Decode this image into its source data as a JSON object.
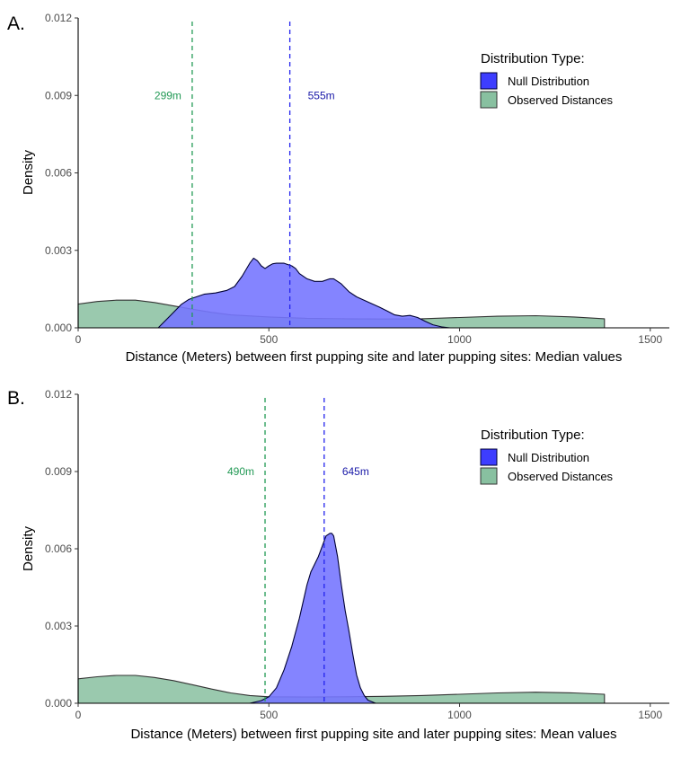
{
  "colors": {
    "null_fill": "#7777ff",
    "null_stroke": "#000033",
    "observed_fill": "#88c0a0",
    "observed_stroke": "#333333",
    "null_line": "#2222ee",
    "observed_line": "#229955",
    "null_text": "#1a1aa8",
    "observed_text": "#229955"
  },
  "chart_data": [
    {
      "type": "area",
      "panel_label": "A.",
      "xlabel": "Distance (Meters) between first pupping site and later pupping sites: Median values",
      "ylabel": "Density",
      "xlim": [
        0,
        1550
      ],
      "ylim": [
        0,
        0.012
      ],
      "x_ticks": [
        0,
        500,
        1000,
        1500
      ],
      "y_ticks": [
        "0.000",
        "0.003",
        "0.006",
        "0.009",
        "0.012"
      ],
      "grid": false,
      "legend": {
        "title": "Distribution Type:",
        "position": "top-right",
        "entries": [
          "Null Distribution",
          "Observed Distances"
        ]
      },
      "series": [
        {
          "name": "Null Distribution",
          "x": [
            210,
            240,
            270,
            290,
            310,
            330,
            360,
            390,
            410,
            430,
            450,
            460,
            470,
            480,
            490,
            500,
            510,
            520,
            530,
            540,
            550,
            560,
            570,
            580,
            600,
            620,
            640,
            660,
            670,
            690,
            710,
            730,
            760,
            790,
            810,
            830,
            850,
            870,
            890,
            910,
            930,
            955,
            975
          ],
          "values": [
            0,
            0.00045,
            0.0009,
            0.0011,
            0.0012,
            0.0013,
            0.00135,
            0.00145,
            0.0016,
            0.002,
            0.0025,
            0.0027,
            0.0026,
            0.0024,
            0.0023,
            0.0024,
            0.00248,
            0.0025,
            0.0025,
            0.0025,
            0.00245,
            0.0024,
            0.0023,
            0.0021,
            0.0019,
            0.0018,
            0.0018,
            0.0019,
            0.0019,
            0.0017,
            0.0014,
            0.0012,
            0.001,
            0.0008,
            0.00065,
            0.0005,
            0.00045,
            0.00048,
            0.0004,
            0.00025,
            0.00012,
            3e-05,
            0
          ]
        },
        {
          "name": "Observed Distances",
          "x": [
            0,
            50,
            100,
            150,
            200,
            250,
            300,
            350,
            400,
            500,
            600,
            700,
            800,
            900,
            1000,
            1100,
            1200,
            1300,
            1380
          ],
          "values": [
            0.00092,
            0.00102,
            0.00107,
            0.00107,
            0.00098,
            0.00085,
            0.00072,
            0.0006,
            0.0005,
            0.00042,
            0.00037,
            0.00035,
            0.00034,
            0.00035,
            0.0004,
            0.00045,
            0.00047,
            0.00042,
            0.00035
          ]
        }
      ],
      "annotations": [
        {
          "label": "299m",
          "x": 299,
          "series": "Observed Distances"
        },
        {
          "label": "555m",
          "x": 555,
          "series": "Null Distribution"
        }
      ]
    },
    {
      "type": "area",
      "panel_label": "B.",
      "xlabel": "Distance (Meters) between first pupping site and later pupping sites: Mean values",
      "ylabel": "Density",
      "xlim": [
        0,
        1550
      ],
      "ylim": [
        0,
        0.012
      ],
      "x_ticks": [
        0,
        500,
        1000,
        1500
      ],
      "y_ticks": [
        "0.000",
        "0.003",
        "0.006",
        "0.009",
        "0.012"
      ],
      "grid": false,
      "legend": {
        "title": "Distribution Type:",
        "position": "top-right",
        "entries": [
          "Null Distribution",
          "Observed Distances"
        ]
      },
      "series": [
        {
          "name": "Null Distribution",
          "x": [
            450,
            480,
            500,
            520,
            540,
            560,
            580,
            600,
            610,
            620,
            630,
            640,
            650,
            660,
            665,
            670,
            680,
            690,
            700,
            710,
            720,
            730,
            740,
            750,
            760,
            780
          ],
          "values": [
            0,
            0.0001,
            0.00025,
            0.0006,
            0.0013,
            0.0022,
            0.0033,
            0.0046,
            0.0051,
            0.0054,
            0.0057,
            0.0061,
            0.0065,
            0.0066,
            0.0066,
            0.0065,
            0.0057,
            0.0046,
            0.0036,
            0.0028,
            0.0019,
            0.0011,
            0.0006,
            0.0003,
            0.00012,
            0
          ]
        },
        {
          "name": "Observed Distances",
          "x": [
            0,
            50,
            100,
            150,
            200,
            250,
            300,
            350,
            400,
            450,
            500,
            600,
            700,
            800,
            900,
            1000,
            1100,
            1200,
            1300,
            1380
          ],
          "values": [
            0.00095,
            0.00103,
            0.00108,
            0.00108,
            0.001,
            0.00088,
            0.00072,
            0.00055,
            0.0004,
            0.0003,
            0.00025,
            0.00024,
            0.00025,
            0.00027,
            0.0003,
            0.00035,
            0.0004,
            0.00043,
            0.0004,
            0.00035
          ]
        }
      ],
      "annotations": [
        {
          "label": "490m",
          "x": 490,
          "series": "Observed Distances"
        },
        {
          "label": "645m",
          "x": 645,
          "series": "Null Distribution"
        }
      ]
    }
  ]
}
